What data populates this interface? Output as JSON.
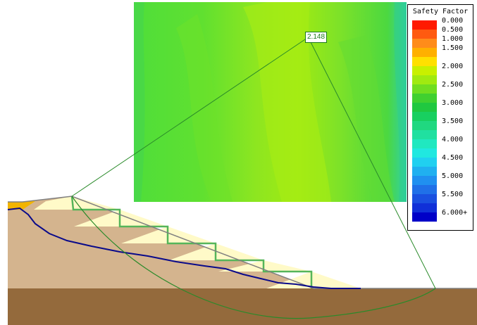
{
  "legend": {
    "title": "Safety Factor",
    "entries": [
      {
        "label": "0.000",
        "color": "#ff1a00"
      },
      {
        "label": "0.500",
        "color": "#ff5a10"
      },
      {
        "label": "1.000",
        "color": "#ff8c1a"
      },
      {
        "label": "1.500",
        "color": "#ffb000"
      },
      {
        "label": "",
        "color": "#ffe000"
      },
      {
        "label": "2.000",
        "color": "#c8f000"
      },
      {
        "label": "",
        "color": "#a0ea10"
      },
      {
        "label": "2.500",
        "color": "#70de20"
      },
      {
        "label": "",
        "color": "#40d030"
      },
      {
        "label": "3.000",
        "color": "#20c840"
      },
      {
        "label": "",
        "color": "#18d060"
      },
      {
        "label": "3.500",
        "color": "#20d880"
      },
      {
        "label": "",
        "color": "#20e0a0"
      },
      {
        "label": "4.000",
        "color": "#20e8c0"
      },
      {
        "label": "",
        "color": "#20e8e0"
      },
      {
        "label": "4.500",
        "color": "#20d0f0"
      },
      {
        "label": "",
        "color": "#20b0f0"
      },
      {
        "label": "5.000",
        "color": "#2090f0"
      },
      {
        "label": "",
        "color": "#2070e8"
      },
      {
        "label": "5.500",
        "color": "#1a50e0"
      },
      {
        "label": "",
        "color": "#1030d8"
      },
      {
        "label": "6.000+",
        "color": "#0000c8"
      }
    ]
  },
  "critical_surface": {
    "factor_label": "2.148"
  },
  "colors": {
    "contour_base": "#5ee03a",
    "contour_light": "#9be618",
    "soil": "#d4b48e",
    "bedrock": "#946a3c",
    "bench_fill": "#fffac8",
    "bench_outline": "#55b55a",
    "water_table": "#0a0a8a",
    "slip_circle": "#2a8a2a",
    "surface_line": "#808080"
  }
}
